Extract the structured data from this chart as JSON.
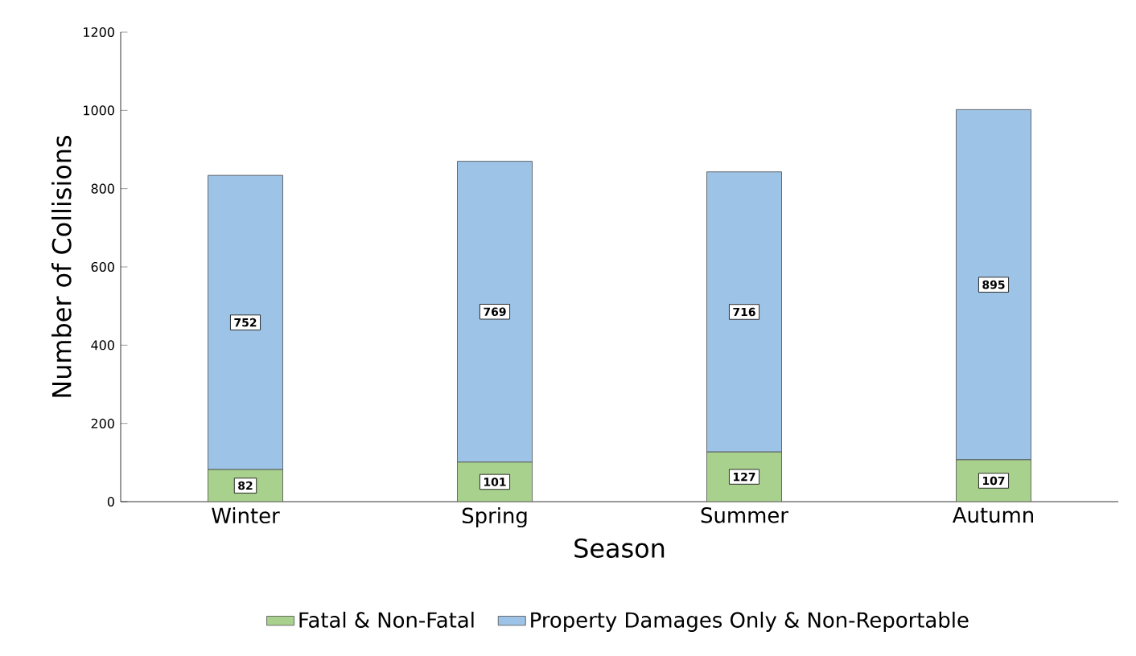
{
  "chart_data": {
    "type": "bar",
    "stacked": true,
    "xlabel": "Season",
    "ylabel": "Number of Collisions",
    "categories": [
      "Winter",
      "Spring",
      "Summer",
      "Autumn"
    ],
    "series": [
      {
        "name": "Fatal & Non-Fatal",
        "color": "#a9d18e",
        "values": [
          82,
          101,
          127,
          107
        ]
      },
      {
        "name": "Property Damages Only & Non-Reportable",
        "color": "#9dc3e6",
        "values": [
          752,
          769,
          716,
          895
        ]
      }
    ],
    "ylim": [
      0,
      1200
    ],
    "yticks": [
      0,
      200,
      400,
      600,
      800,
      1000,
      1200
    ],
    "data_labels": true,
    "legend": "bottom",
    "grid": false
  }
}
